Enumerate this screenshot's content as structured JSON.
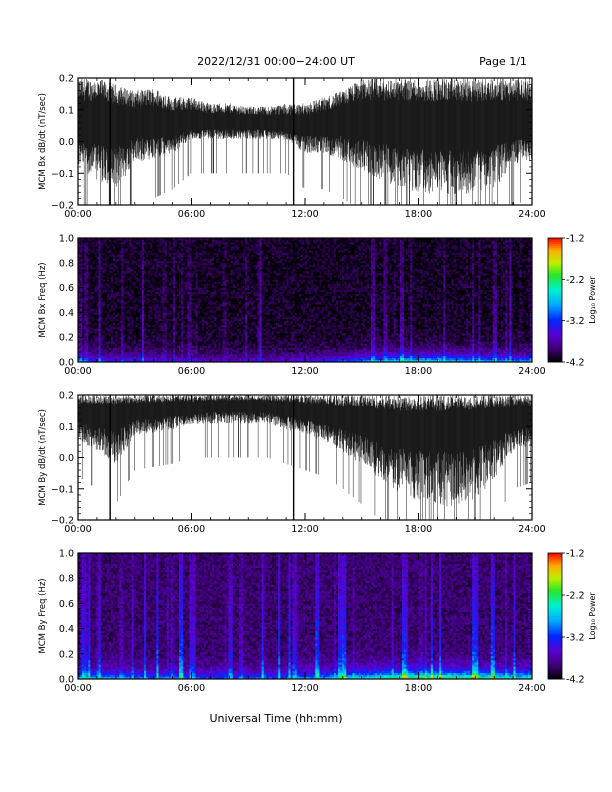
{
  "header": {
    "date_range": "2022/12/31  00:00−24:00 UT",
    "page": "Page 1/1"
  },
  "xlabel": "Universal Time (hh:mm)",
  "x_ticks": [
    "00:00",
    "06:00",
    "12:00",
    "18:00",
    "24:00"
  ],
  "colorbar": {
    "label": "Log₁₀ Power",
    "ticks": [
      "-1.2",
      "-2.2",
      "-3.2",
      "-4.2"
    ],
    "range": [
      -4.2,
      -1.2
    ]
  },
  "colors": {
    "line": "#000000",
    "background": "#ffffff"
  },
  "chart_data": [
    {
      "type": "line",
      "ylabel": "MCM Bx dB/dt (nT/sec)",
      "y_ticks": [
        "0.2",
        "0.1",
        "0.0",
        "−0.1",
        "−0.2"
      ],
      "xlim_hours": [
        0,
        24
      ],
      "ylim": [
        -0.2,
        0.2
      ],
      "series": [
        {
          "x": [
            0,
            1,
            2,
            3,
            4,
            5,
            6,
            7,
            8,
            9,
            10,
            11,
            12,
            13,
            14,
            15,
            16,
            17,
            18,
            19,
            20,
            21,
            22,
            23,
            24
          ],
          "center": [
            0.04,
            0.04,
            0.04,
            0.04,
            0.04,
            0.04,
            0.05,
            0.05,
            0.05,
            0.05,
            0.05,
            0.04,
            0.04,
            0.04,
            0.05,
            0.05,
            0.04,
            0.04,
            0.04,
            0.03,
            0.03,
            0.03,
            0.04,
            0.04,
            0.04
          ],
          "envelope_max": [
            0.2,
            0.2,
            0.18,
            0.16,
            0.17,
            0.14,
            0.14,
            0.12,
            0.12,
            0.11,
            0.11,
            0.12,
            0.12,
            0.14,
            0.16,
            0.2,
            0.2,
            0.2,
            0.2,
            0.2,
            0.2,
            0.2,
            0.2,
            0.2,
            0.2
          ],
          "envelope_min": [
            -0.1,
            -0.15,
            -0.2,
            -0.08,
            -0.08,
            -0.05,
            0.0,
            0.0,
            0.0,
            0.0,
            0.0,
            0.0,
            -0.05,
            -0.05,
            -0.08,
            -0.12,
            -0.15,
            -0.18,
            -0.2,
            -0.2,
            -0.2,
            -0.2,
            -0.18,
            -0.1,
            -0.08
          ]
        }
      ]
    },
    {
      "type": "heatmap",
      "ylabel": "MCM Bx Freq (Hz)",
      "y_ticks": [
        "1.0",
        "0.8",
        "0.6",
        "0.4",
        "0.2",
        "0.0"
      ],
      "xlim_hours": [
        0,
        24
      ],
      "ylim": [
        0,
        1
      ],
      "value_range": [
        -4.2,
        -1.2
      ],
      "floor": -4.1,
      "low_freq_peak": [
        -3.0,
        -3.1,
        -3.2,
        -3.2,
        -3.3,
        -3.4,
        -3.4,
        -3.5,
        -3.5,
        -3.5,
        -3.5,
        -3.4,
        -3.3,
        -3.2,
        -3.0,
        -2.8,
        -2.6,
        -2.5,
        -2.4,
        -2.4,
        -2.5,
        -2.6,
        -2.7,
        -2.8,
        -2.8
      ]
    },
    {
      "type": "line",
      "ylabel": "MCM By dB/dt (nT/sec)",
      "y_ticks": [
        "0.2",
        "0.1",
        "0.0",
        "−0.1",
        "−0.2"
      ],
      "xlim_hours": [
        0,
        24
      ],
      "ylim": [
        -0.2,
        0.2
      ],
      "series": [
        {
          "x": [
            0,
            1,
            2,
            3,
            4,
            5,
            6,
            7,
            8,
            9,
            10,
            11,
            12,
            13,
            14,
            15,
            16,
            17,
            18,
            19,
            20,
            21,
            22,
            23,
            24
          ],
          "center": [
            0.14,
            0.13,
            0.13,
            0.14,
            0.14,
            0.15,
            0.15,
            0.16,
            0.16,
            0.16,
            0.16,
            0.15,
            0.14,
            0.13,
            0.12,
            0.11,
            0.1,
            0.09,
            0.09,
            0.09,
            0.09,
            0.1,
            0.11,
            0.12,
            0.12
          ],
          "envelope_max": [
            0.2,
            0.2,
            0.2,
            0.2,
            0.2,
            0.2,
            0.2,
            0.2,
            0.2,
            0.2,
            0.2,
            0.2,
            0.2,
            0.2,
            0.2,
            0.2,
            0.2,
            0.2,
            0.2,
            0.2,
            0.2,
            0.2,
            0.2,
            0.2,
            0.2
          ],
          "envelope_min": [
            0.04,
            0.0,
            -0.05,
            0.06,
            0.07,
            0.08,
            0.1,
            0.1,
            0.1,
            0.1,
            0.1,
            0.08,
            0.06,
            0.04,
            0.0,
            -0.05,
            -0.1,
            -0.15,
            -0.18,
            -0.2,
            -0.2,
            -0.18,
            -0.1,
            0.0,
            0.02
          ]
        }
      ]
    },
    {
      "type": "heatmap",
      "ylabel": "MCM By Freq (Hz)",
      "y_ticks": [
        "1.0",
        "0.8",
        "0.6",
        "0.4",
        "0.2",
        "0.0"
      ],
      "xlim_hours": [
        0,
        24
      ],
      "ylim": [
        0,
        1
      ],
      "value_range": [
        -4.2,
        -1.2
      ],
      "floor": -3.9,
      "low_freq_peak": [
        -2.7,
        -2.7,
        -2.8,
        -2.8,
        -2.9,
        -2.9,
        -3.0,
        -3.0,
        -3.0,
        -3.0,
        -3.0,
        -2.9,
        -2.8,
        -2.6,
        -2.5,
        -2.3,
        -2.1,
        -2.0,
        -1.9,
        -1.8,
        -1.9,
        -2.0,
        -2.2,
        -2.3,
        -2.3
      ]
    }
  ]
}
